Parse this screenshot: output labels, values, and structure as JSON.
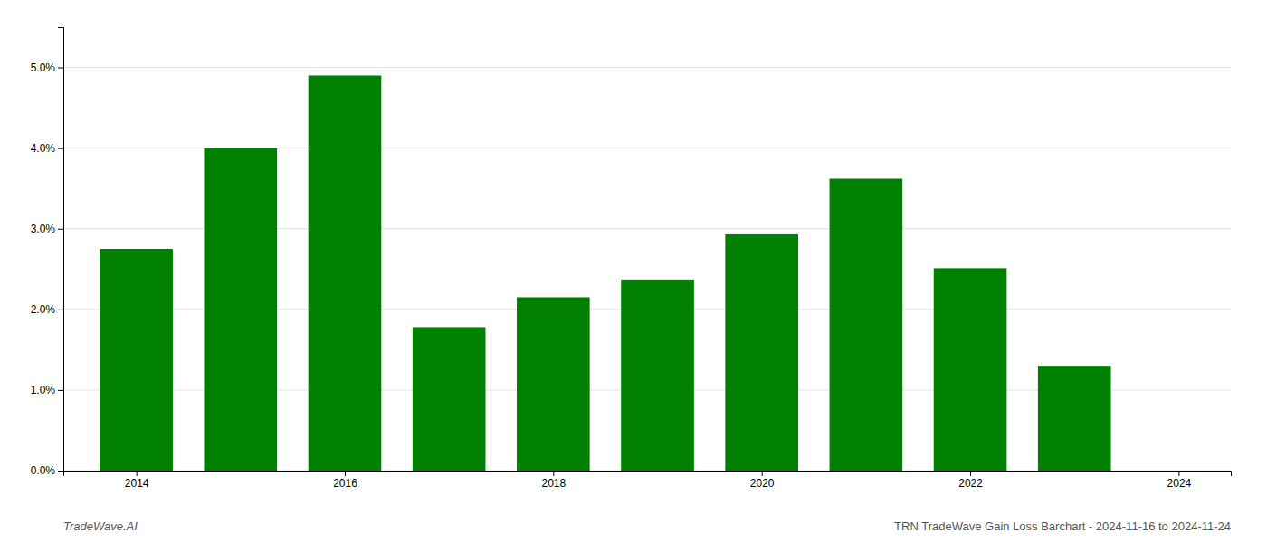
{
  "chart_data": {
    "type": "bar",
    "x": [
      2014,
      2015,
      2016,
      2017,
      2018,
      2019,
      2020,
      2021,
      2022,
      2023
    ],
    "values": [
      0.0275,
      0.04,
      0.049,
      0.0178,
      0.0215,
      0.0237,
      0.0293,
      0.0362,
      0.0251,
      0.013
    ],
    "color": "#008000",
    "xlim": [
      2013.3,
      2024.5
    ],
    "xticks": [
      2014,
      2016,
      2018,
      2020,
      2022,
      2024
    ],
    "ylim": [
      0.0,
      0.055
    ],
    "yticks": [
      {
        "value": 0.0,
        "label": "0.0%"
      },
      {
        "value": 0.01,
        "label": "1.0%"
      },
      {
        "value": 0.02,
        "label": "2.0%"
      },
      {
        "value": 0.03,
        "label": "3.0%"
      },
      {
        "value": 0.04,
        "label": "4.0%"
      },
      {
        "value": 0.05,
        "label": "5.0%"
      }
    ],
    "grid": true,
    "annotations": [
      "TradeWave.AI",
      "TRN TradeWave Gain Loss Barchart - 2024-11-16 to 2024-11-24"
    ]
  }
}
